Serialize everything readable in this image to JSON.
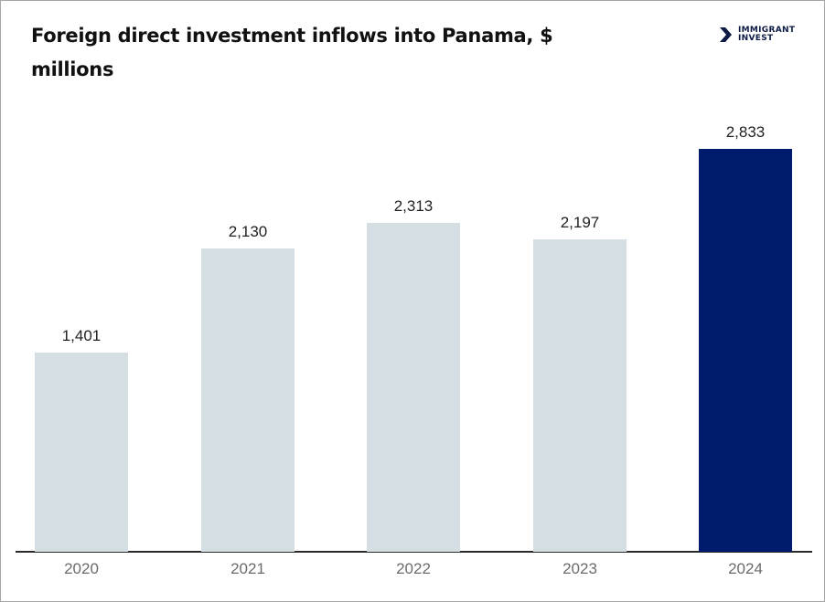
{
  "header": {
    "title": "Foreign direct investment inflows into Panama, $ millions",
    "logo": {
      "icon": "double-chevron-right-icon",
      "line1": "IMMIGRANT",
      "line2": "INVEST",
      "color": "#0d1a45"
    }
  },
  "colors": {
    "bar_default": "#d5dfe3",
    "bar_highlight": "#001a6e",
    "axis": "#2b2b2b",
    "tick_label": "#6b6b6b",
    "data_label": "#222222"
  },
  "chart_data": {
    "type": "bar",
    "title": "Foreign direct investment inflows into Panama, $ millions",
    "xlabel": "",
    "ylabel": "",
    "categories": [
      "2020",
      "2021",
      "2022",
      "2023",
      "2024"
    ],
    "values": [
      1401,
      2130,
      2313,
      2197,
      2833
    ],
    "value_labels": [
      "1,401",
      "2,130",
      "2,313",
      "2,197",
      "2,833"
    ],
    "highlight_index": 4,
    "ylim": [
      0,
      2833
    ],
    "grid": false,
    "legend": null,
    "y_axis_visible": false
  }
}
